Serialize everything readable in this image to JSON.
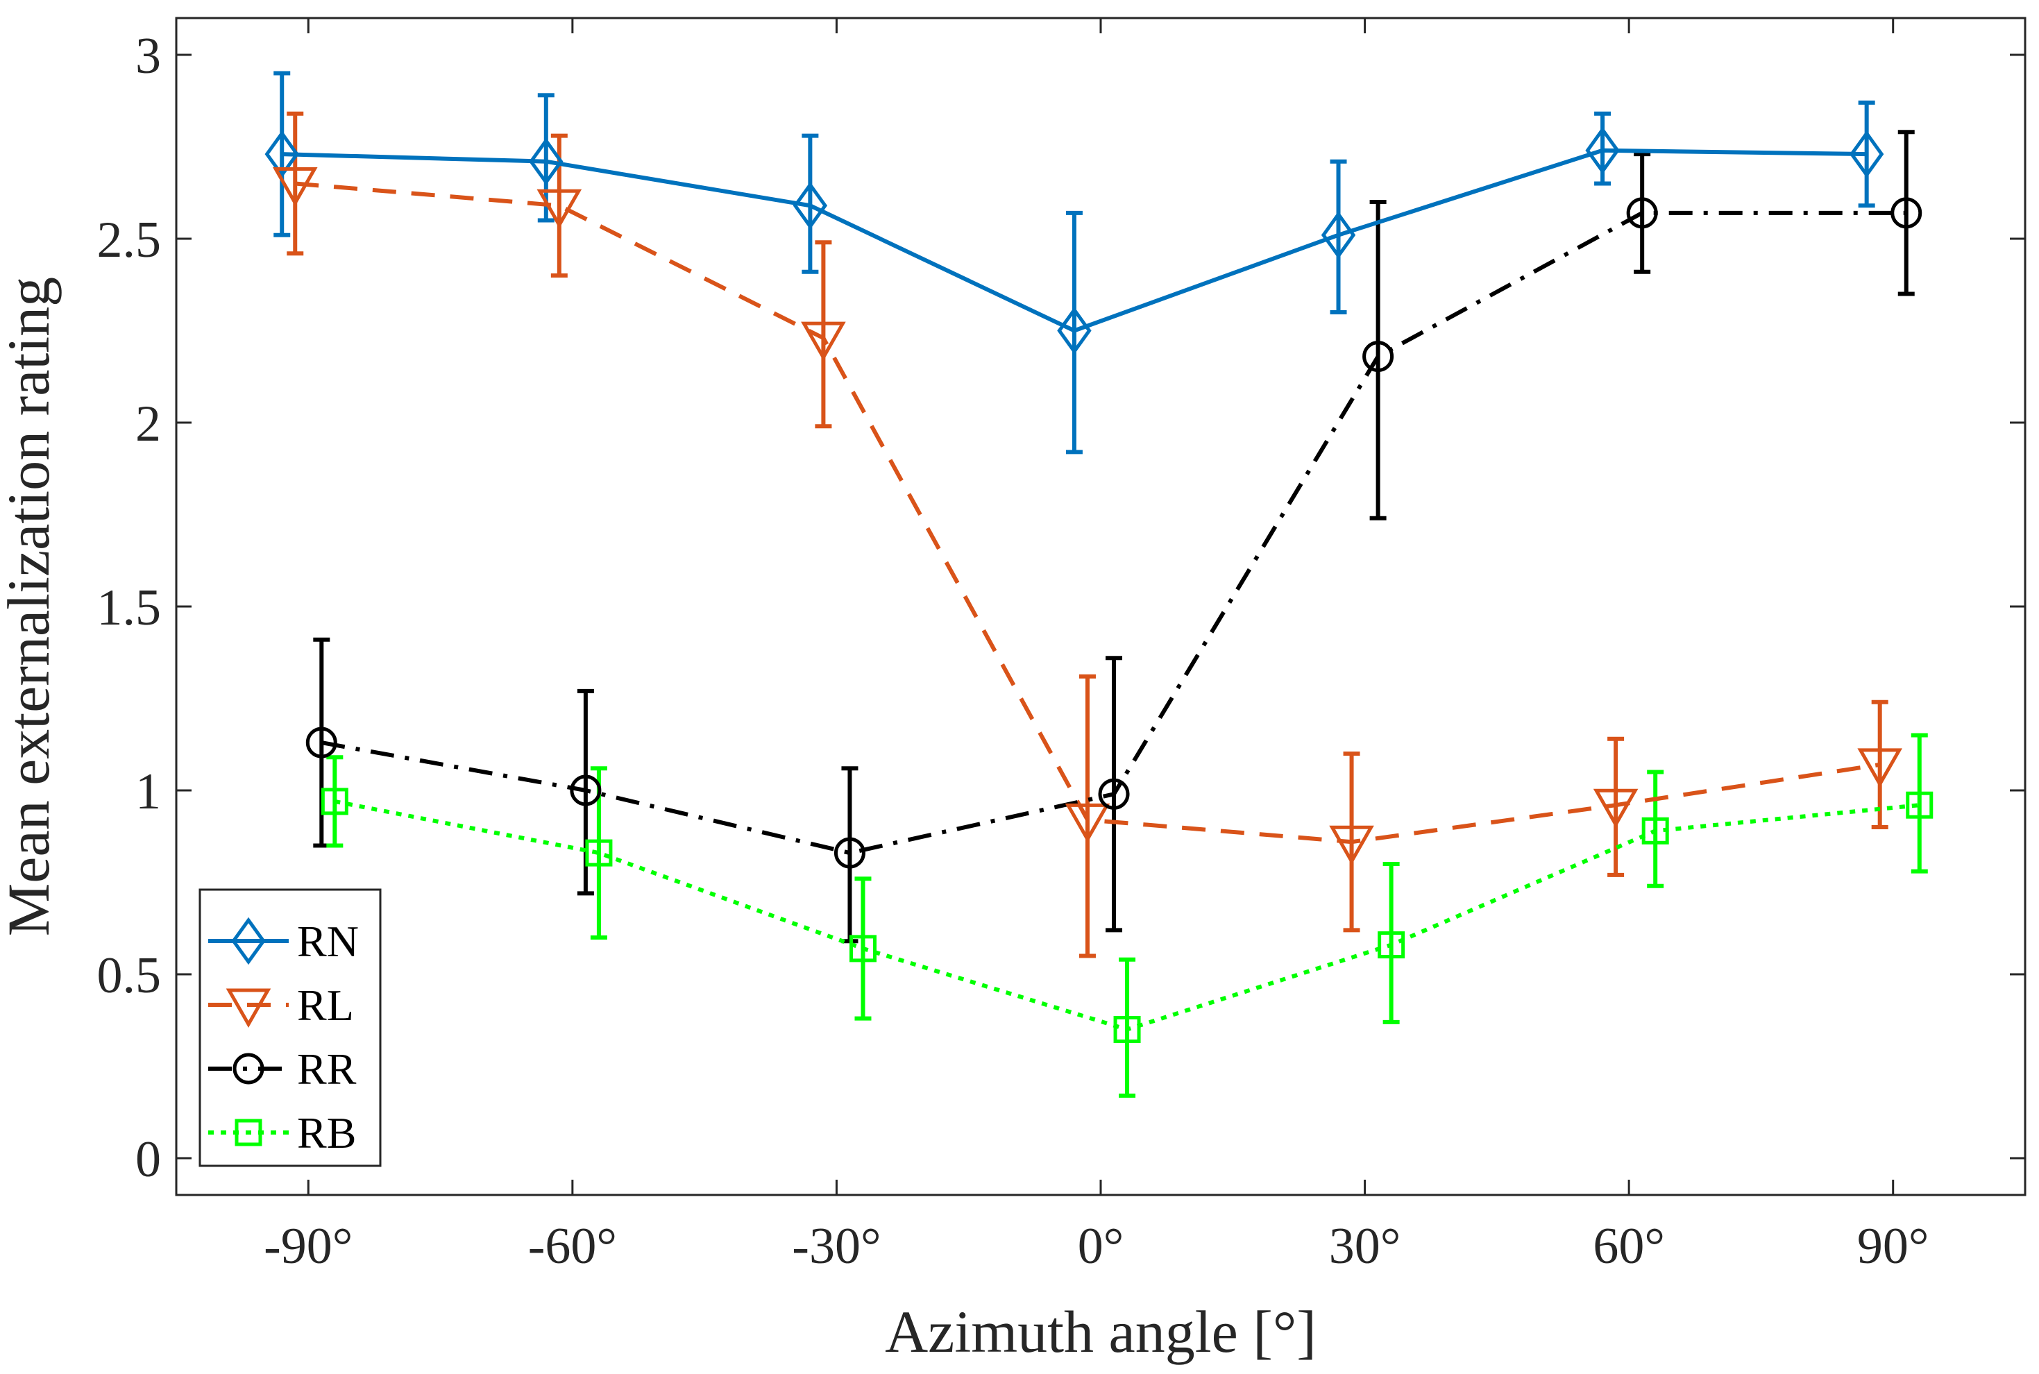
{
  "chart_data": {
    "type": "line",
    "title": "",
    "xlabel": "Azimuth angle [°]",
    "ylabel": "Mean externalization rating",
    "xlim": [
      -105,
      105
    ],
    "ylim": [
      -0.1,
      3.1
    ],
    "categories": [
      -90,
      -60,
      -30,
      0,
      30,
      60,
      90
    ],
    "x_tick_labels": [
      "-90°",
      "-60°",
      "-30°",
      "0°",
      "30°",
      "60°",
      "90°"
    ],
    "y_ticks": [
      0,
      0.5,
      1,
      1.5,
      2,
      2.5,
      3
    ],
    "y_tick_labels": [
      "0",
      "0.5",
      "1",
      "1.5",
      "2",
      "2.5",
      "3"
    ],
    "grid": false,
    "legend_position": "bottom-left",
    "series": [
      {
        "name": "RN",
        "color": "#0072BD",
        "marker": "diamond",
        "line": "solid",
        "offset": -3,
        "values": [
          2.73,
          2.71,
          2.59,
          2.25,
          2.51,
          2.74,
          2.73
        ],
        "err_low": [
          2.51,
          2.55,
          2.41,
          1.92,
          2.3,
          2.65,
          2.59
        ],
        "err_high": [
          2.95,
          2.89,
          2.78,
          2.57,
          2.71,
          2.84,
          2.87
        ]
      },
      {
        "name": "RL",
        "color": "#D95319",
        "marker": "triangle-down",
        "line": "dashed",
        "offset": -1.5,
        "values": [
          2.65,
          2.59,
          2.23,
          0.92,
          0.86,
          0.96,
          1.07
        ],
        "err_low": [
          2.46,
          2.4,
          1.99,
          0.55,
          0.62,
          0.77,
          0.9
        ],
        "err_high": [
          2.84,
          2.78,
          2.49,
          1.31,
          1.1,
          1.14,
          1.24
        ]
      },
      {
        "name": "RR",
        "color": "#000000",
        "marker": "circle",
        "line": "dashdot",
        "offset": 1.5,
        "values": [
          1.13,
          1.0,
          0.83,
          0.99,
          2.18,
          2.57,
          2.57
        ],
        "err_low": [
          0.85,
          0.72,
          0.59,
          0.62,
          1.74,
          2.41,
          2.35
        ],
        "err_high": [
          1.41,
          1.27,
          1.06,
          1.36,
          2.6,
          2.73,
          2.79
        ]
      },
      {
        "name": "RB",
        "color": "#00FF00",
        "marker": "square",
        "line": "dotted",
        "offset": 3,
        "values": [
          0.97,
          0.83,
          0.57,
          0.35,
          0.58,
          0.89,
          0.96
        ],
        "err_low": [
          0.85,
          0.6,
          0.38,
          0.17,
          0.37,
          0.74,
          0.78
        ],
        "err_high": [
          1.09,
          1.06,
          0.76,
          0.54,
          0.8,
          1.05,
          1.15
        ]
      }
    ]
  }
}
